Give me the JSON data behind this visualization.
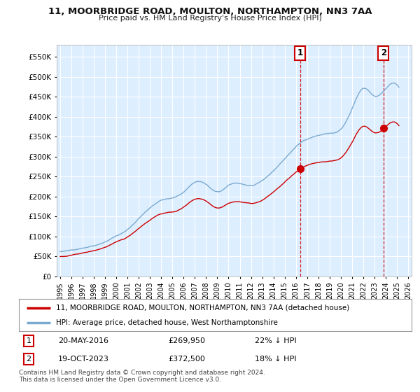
{
  "title": "11, MOORBRIDGE ROAD, MOULTON, NORTHAMPTON, NN3 7AA",
  "subtitle": "Price paid vs. HM Land Registry's House Price Index (HPI)",
  "ylabel_ticks": [
    "£0",
    "£50K",
    "£100K",
    "£150K",
    "£200K",
    "£250K",
    "£300K",
    "£350K",
    "£400K",
    "£450K",
    "£500K",
    "£550K"
  ],
  "ytick_values": [
    0,
    50000,
    100000,
    150000,
    200000,
    250000,
    300000,
    350000,
    400000,
    450000,
    500000,
    550000
  ],
  "ylim": [
    0,
    580000
  ],
  "xlim": [
    1994.7,
    2026.3
  ],
  "hpi_monthly_years": [
    1995.0,
    1995.08,
    1995.17,
    1995.25,
    1995.33,
    1995.42,
    1995.5,
    1995.58,
    1995.67,
    1995.75,
    1995.83,
    1995.92,
    1996.0,
    1996.08,
    1996.17,
    1996.25,
    1996.33,
    1996.42,
    1996.5,
    1996.58,
    1996.67,
    1996.75,
    1996.83,
    1996.92,
    1997.0,
    1997.08,
    1997.17,
    1997.25,
    1997.33,
    1997.42,
    1997.5,
    1997.58,
    1997.67,
    1997.75,
    1997.83,
    1997.92,
    1998.0,
    1998.08,
    1998.17,
    1998.25,
    1998.33,
    1998.42,
    1998.5,
    1998.58,
    1998.67,
    1998.75,
    1998.83,
    1998.92,
    1999.0,
    1999.08,
    1999.17,
    1999.25,
    1999.33,
    1999.42,
    1999.5,
    1999.58,
    1999.67,
    1999.75,
    1999.83,
    1999.92,
    2000.0,
    2000.08,
    2000.17,
    2000.25,
    2000.33,
    2000.42,
    2000.5,
    2000.58,
    2000.67,
    2000.75,
    2000.83,
    2000.92,
    2001.0,
    2001.08,
    2001.17,
    2001.25,
    2001.33,
    2001.42,
    2001.5,
    2001.58,
    2001.67,
    2001.75,
    2001.83,
    2001.92,
    2002.0,
    2002.08,
    2002.17,
    2002.25,
    2002.33,
    2002.42,
    2002.5,
    2002.58,
    2002.67,
    2002.75,
    2002.83,
    2002.92,
    2003.0,
    2003.08,
    2003.17,
    2003.25,
    2003.33,
    2003.42,
    2003.5,
    2003.58,
    2003.67,
    2003.75,
    2003.83,
    2003.92,
    2004.0,
    2004.08,
    2004.17,
    2004.25,
    2004.33,
    2004.42,
    2004.5,
    2004.58,
    2004.67,
    2004.75,
    2004.83,
    2004.92,
    2005.0,
    2005.08,
    2005.17,
    2005.25,
    2005.33,
    2005.42,
    2005.5,
    2005.58,
    2005.67,
    2005.75,
    2005.83,
    2005.92,
    2006.0,
    2006.08,
    2006.17,
    2006.25,
    2006.33,
    2006.42,
    2006.5,
    2006.58,
    2006.67,
    2006.75,
    2006.83,
    2006.92,
    2007.0,
    2007.08,
    2007.17,
    2007.25,
    2007.33,
    2007.42,
    2007.5,
    2007.58,
    2007.67,
    2007.75,
    2007.83,
    2007.92,
    2008.0,
    2008.08,
    2008.17,
    2008.25,
    2008.33,
    2008.42,
    2008.5,
    2008.58,
    2008.67,
    2008.75,
    2008.83,
    2008.92,
    2009.0,
    2009.08,
    2009.17,
    2009.25,
    2009.33,
    2009.42,
    2009.5,
    2009.58,
    2009.67,
    2009.75,
    2009.83,
    2009.92,
    2010.0,
    2010.08,
    2010.17,
    2010.25,
    2010.33,
    2010.42,
    2010.5,
    2010.58,
    2010.67,
    2010.75,
    2010.83,
    2010.92,
    2011.0,
    2011.08,
    2011.17,
    2011.25,
    2011.33,
    2011.42,
    2011.5,
    2011.58,
    2011.67,
    2011.75,
    2011.83,
    2011.92,
    2012.0,
    2012.08,
    2012.17,
    2012.25,
    2012.33,
    2012.42,
    2012.5,
    2012.58,
    2012.67,
    2012.75,
    2012.83,
    2012.92,
    2013.0,
    2013.08,
    2013.17,
    2013.25,
    2013.33,
    2013.42,
    2013.5,
    2013.58,
    2013.67,
    2013.75,
    2013.83,
    2013.92,
    2014.0,
    2014.08,
    2014.17,
    2014.25,
    2014.33,
    2014.42,
    2014.5,
    2014.58,
    2014.67,
    2014.75,
    2014.83,
    2014.92,
    2015.0,
    2015.08,
    2015.17,
    2015.25,
    2015.33,
    2015.42,
    2015.5,
    2015.58,
    2015.67,
    2015.75,
    2015.83,
    2015.92,
    2016.0,
    2016.08,
    2016.17,
    2016.25,
    2016.33,
    2016.42,
    2016.5,
    2016.58,
    2016.67,
    2016.75,
    2016.83,
    2016.92,
    2017.0,
    2017.08,
    2017.17,
    2017.25,
    2017.33,
    2017.42,
    2017.5,
    2017.58,
    2017.67,
    2017.75,
    2017.83,
    2017.92,
    2018.0,
    2018.08,
    2018.17,
    2018.25,
    2018.33,
    2018.42,
    2018.5,
    2018.58,
    2018.67,
    2018.75,
    2018.83,
    2018.92,
    2019.0,
    2019.08,
    2019.17,
    2019.25,
    2019.33,
    2019.42,
    2019.5,
    2019.58,
    2019.67,
    2019.75,
    2019.83,
    2019.92,
    2020.0,
    2020.08,
    2020.17,
    2020.25,
    2020.33,
    2020.42,
    2020.5,
    2020.58,
    2020.67,
    2020.75,
    2020.83,
    2020.92,
    2021.0,
    2021.08,
    2021.17,
    2021.25,
    2021.33,
    2021.42,
    2021.5,
    2021.58,
    2021.67,
    2021.75,
    2021.83,
    2021.92,
    2022.0,
    2022.08,
    2022.17,
    2022.25,
    2022.33,
    2022.42,
    2022.5,
    2022.58,
    2022.67,
    2022.75,
    2022.83,
    2022.92,
    2023.0,
    2023.08,
    2023.17,
    2023.25,
    2023.33,
    2023.42,
    2023.5,
    2023.58,
    2023.67,
    2023.75,
    2023.83,
    2023.92,
    2024.0,
    2024.08,
    2024.17,
    2024.25,
    2024.33,
    2024.42,
    2024.5,
    2024.58,
    2024.67,
    2024.75,
    2024.83,
    2024.92,
    2025.0,
    2025.08,
    2025.17
  ],
  "sale1_year": 2016.38,
  "sale1_price": 269950,
  "sale2_year": 2023.79,
  "sale2_price": 372500,
  "sale1_date": "20-MAY-2016",
  "sale1_price_str": "£269,950",
  "sale1_note": "22% ↓ HPI",
  "sale2_date": "19-OCT-2023",
  "sale2_price_str": "£372,500",
  "sale2_note": "18% ↓ HPI",
  "legend_line1": "11, MOORBRIDGE ROAD, MOULTON, NORTHAMPTON, NN3 7AA (detached house)",
  "legend_line2": "HPI: Average price, detached house, West Northamptonshire",
  "footer": "Contains HM Land Registry data © Crown copyright and database right 2024.\nThis data is licensed under the Open Government Licence v3.0.",
  "red_line_color": "#cc0000",
  "blue_line_color": "#7aaad0",
  "plot_bg": "#ddeeff",
  "grid_color": "#bbccdd",
  "vline_color": "#cc0000"
}
